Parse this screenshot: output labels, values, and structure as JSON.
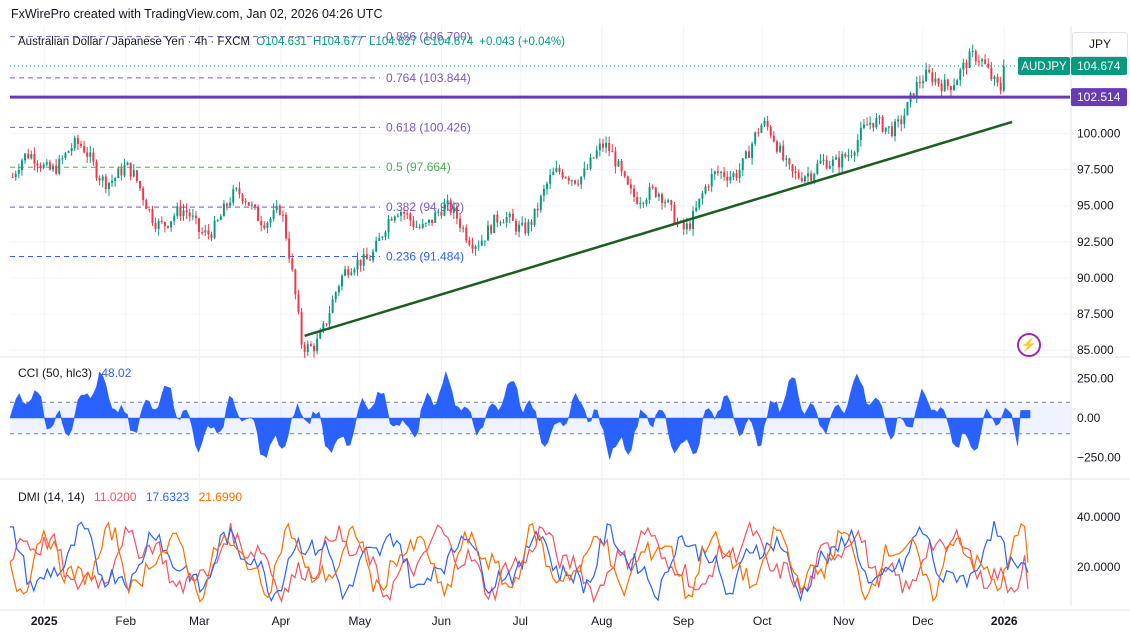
{
  "header": {
    "caption": "FxWirePro created with TradingView.com, Jan 02, 2026 04:26 UTC",
    "currency_button": "JPY"
  },
  "legend": {
    "symbol_name": "Australian Dollar / Japanese Yen · 4h · FXCM",
    "open": "O104.631",
    "high": "H104.677",
    "low": "L104.627",
    "close": "C104.674",
    "change": "+0.043 (+0.04%)"
  },
  "cci_legend": {
    "name": "CCI (50, hlc3)",
    "value": "48.02"
  },
  "dmi_legend": {
    "name": "DMI (14, 14)",
    "adx": "11.0200",
    "plus_di": "17.6323",
    "minus_di": "21.6990"
  },
  "price_tags": {
    "symbol": "AUDJPY",
    "last_price": "104.674",
    "horizontal_level": "102.514"
  },
  "colors": {
    "up": "#089981",
    "down": "#f23645",
    "fib": "#7e57c2",
    "fib_green": "#4caf50",
    "fib_blue": "#2962ff",
    "level_line": "#673ab7",
    "trendline": "#1b5e20",
    "cci_fill": "#2962ff",
    "dmi_plus": "#2962ff",
    "dmi_minus": "#ff6d00",
    "adx": "#f7525f"
  },
  "chart_data": [
    {
      "type": "candlestick",
      "title": "Australian Dollar / Japanese Yen · 4h · FXCM",
      "x_tick_labels": [
        "2025",
        "Feb",
        "Mar",
        "Apr",
        "May",
        "Jun",
        "Jul",
        "Aug",
        "Sep",
        "Oct",
        "Nov",
        "Dec",
        "2026"
      ],
      "y_tick_labels": [
        "100.000",
        "97.500",
        "95.000",
        "92.500",
        "90.000",
        "87.500",
        "85.000"
      ],
      "y_ticks": [
        100,
        97.5,
        95,
        92.5,
        90,
        87.5,
        85
      ],
      "ylim": [
        84.6,
        107.3
      ],
      "series_monthly_close": {
        "x": [
          "2025-01-01",
          "2025-02-01",
          "2025-03-01",
          "2025-04-01",
          "2025-04-09",
          "2025-05-01",
          "2025-06-01",
          "2025-07-01",
          "2025-08-01",
          "2025-09-01",
          "2025-10-01",
          "2025-10-20",
          "2025-11-01",
          "2025-12-01",
          "2025-12-20",
          "2026-01-02"
        ],
        "y": [
          97.0,
          98.0,
          93.0,
          94.5,
          86.2,
          92.0,
          93.5,
          95.0,
          97.2,
          95.5,
          98.5,
          96.5,
          100.5,
          102.0,
          103.8,
          104.674
        ]
      },
      "fibonacci_levels": [
        {
          "label": "0.886 (106.700)",
          "value": 106.7
        },
        {
          "label": "0.764 (103.844)",
          "value": 103.844
        },
        {
          "label": "0.618 (100.426)",
          "value": 100.426
        },
        {
          "label": "0.5 (97.664)",
          "value": 97.664
        },
        {
          "label": "0.382 (94.902)",
          "value": 94.902
        },
        {
          "label": "0.236 (91.484)",
          "value": 91.484
        }
      ],
      "horizontal_line": 102.514,
      "last_price": 104.674,
      "trendline": {
        "from": {
          "x": "2025-04-10",
          "y": 86.0
        },
        "to": {
          "x": "2026-01-04",
          "y": 100.8
        }
      }
    },
    {
      "type": "area",
      "title": "CCI (50, hlc3)",
      "y_tick_labels": [
        "250.00",
        "0.00",
        "−250.00"
      ],
      "y_ticks": [
        250,
        0,
        -250
      ],
      "ylim": [
        -380,
        380
      ],
      "bands": [
        100,
        -100
      ],
      "last_value": 48.02
    },
    {
      "type": "line",
      "title": "DMI (14, 14)",
      "y_tick_labels": [
        "40.0000",
        "20.0000"
      ],
      "y_ticks": [
        40,
        20
      ],
      "ylim": [
        5,
        55
      ],
      "series": [
        {
          "name": "11.0200",
          "last": 11.02
        },
        {
          "name": "17.6323",
          "last": 17.6323
        },
        {
          "name": "21.6990",
          "last": 21.699
        }
      ]
    }
  ]
}
